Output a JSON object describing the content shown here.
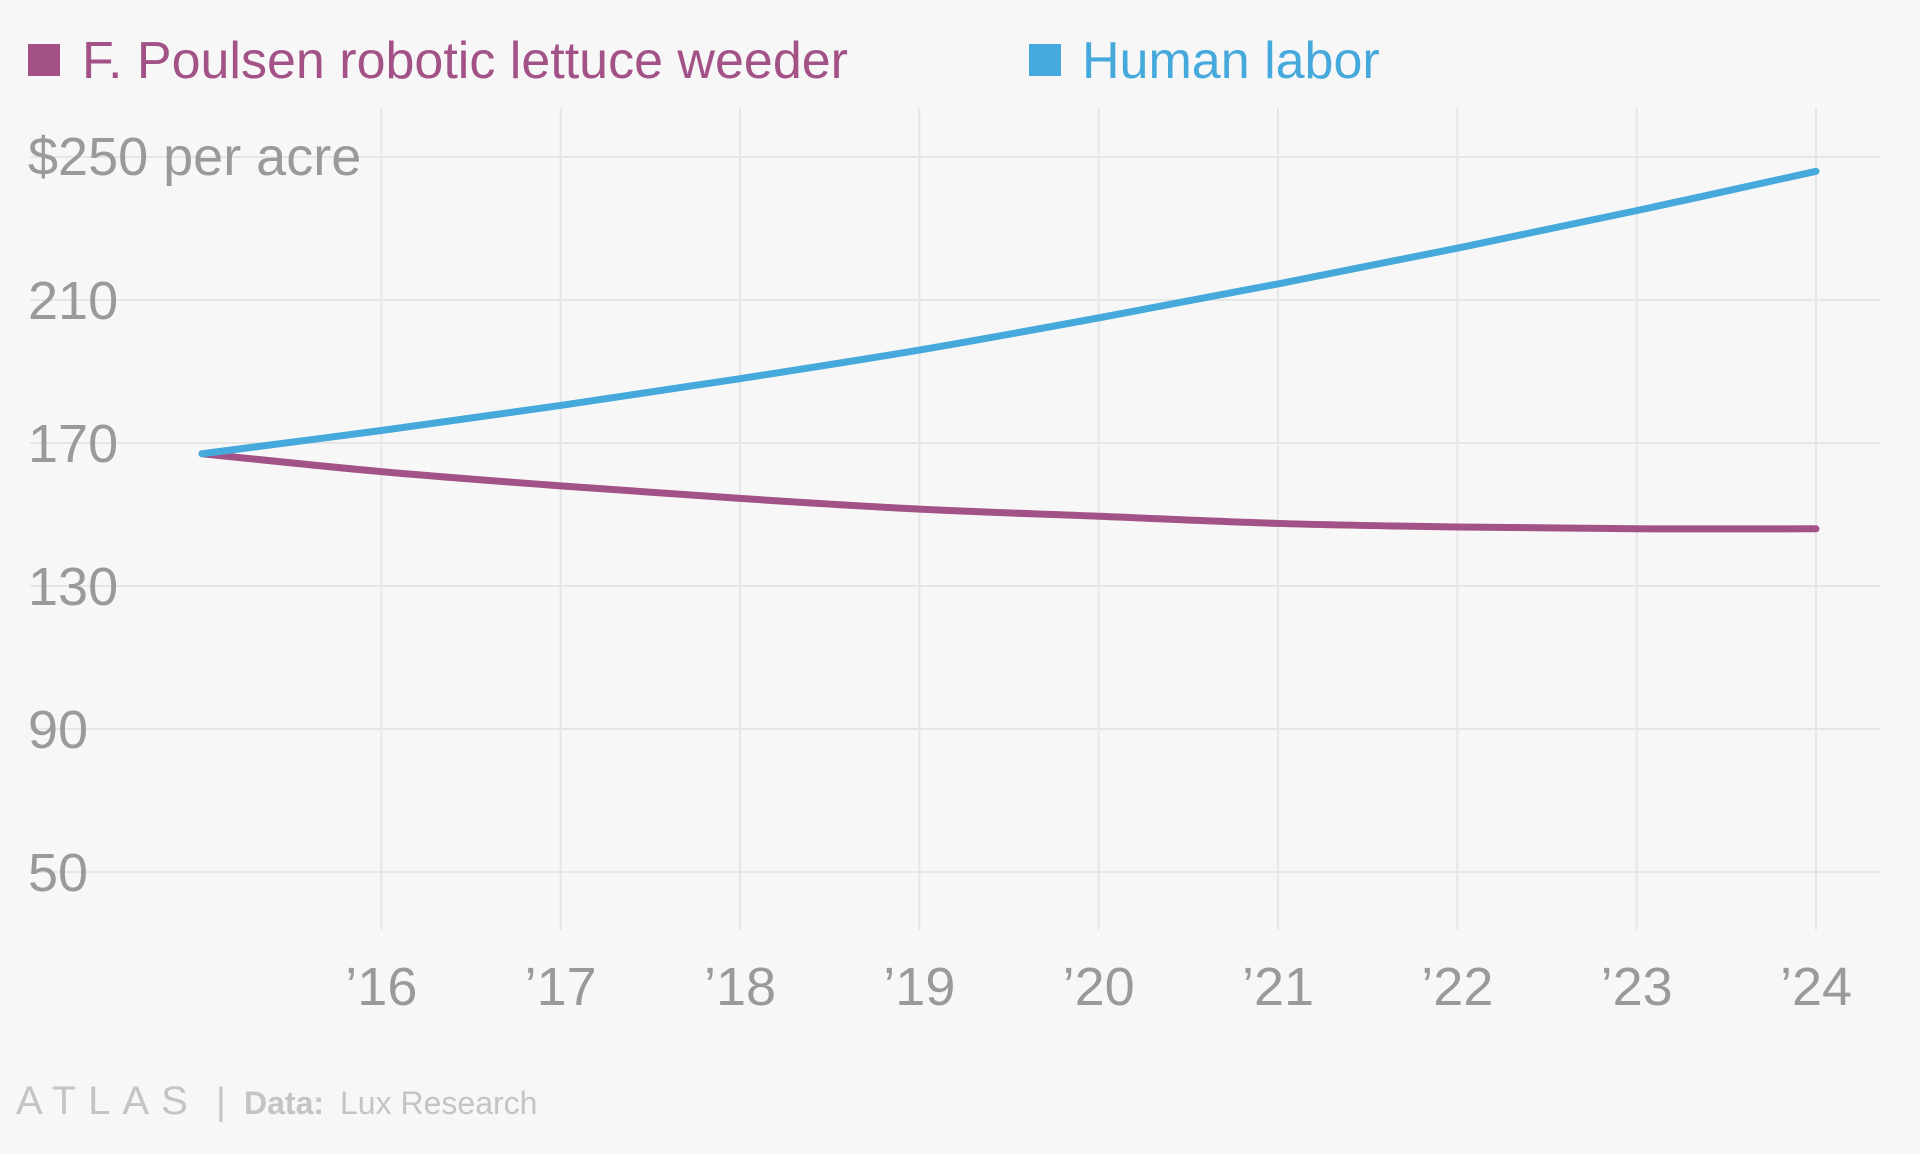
{
  "chart_data": {
    "type": "line",
    "title": "",
    "xlabel": "",
    "ylabel": "",
    "x": [
      2015,
      2016,
      2017,
      2018,
      2019,
      2020,
      2021,
      2022,
      2023,
      2024
    ],
    "x_tick_values": [
      2016,
      2017,
      2018,
      2019,
      2020,
      2021,
      2022,
      2023,
      2024
    ],
    "x_tick_labels": [
      "’16",
      "’17",
      "’18",
      "’19",
      "’20",
      "’21",
      "’22",
      "’23",
      "’24"
    ],
    "y_tick_values": [
      250,
      210,
      170,
      130,
      90,
      50
    ],
    "y_tick_labels": [
      "$250 per acre",
      "210",
      "170",
      "130",
      "90",
      "50"
    ],
    "ylim": [
      35,
      250
    ],
    "xlim": [
      2014,
      2024.35
    ],
    "grid": true,
    "legend_position": "top-left",
    "series": [
      {
        "name": "F. Poulsen robotic lettuce weeder",
        "color": "#a35287",
        "values": [
          167,
          162,
          158,
          154.5,
          151.5,
          149.5,
          147.5,
          146.5,
          146,
          146
        ]
      },
      {
        "name": "Human labor",
        "color": "#46a9dc",
        "values": [
          167,
          173.5,
          180.5,
          188,
          196,
          205,
          214.5,
          224.5,
          235,
          246
        ]
      }
    ]
  },
  "footer": {
    "brand": "ATLAS",
    "separator": "|",
    "source_label": "Data:",
    "source_name": "Lux Research"
  },
  "colors": {
    "background": "#f7f7f7",
    "grid": "#e6e6e6",
    "tick_text": "#9a9a9a",
    "footer_text": "#c4c4c4"
  }
}
